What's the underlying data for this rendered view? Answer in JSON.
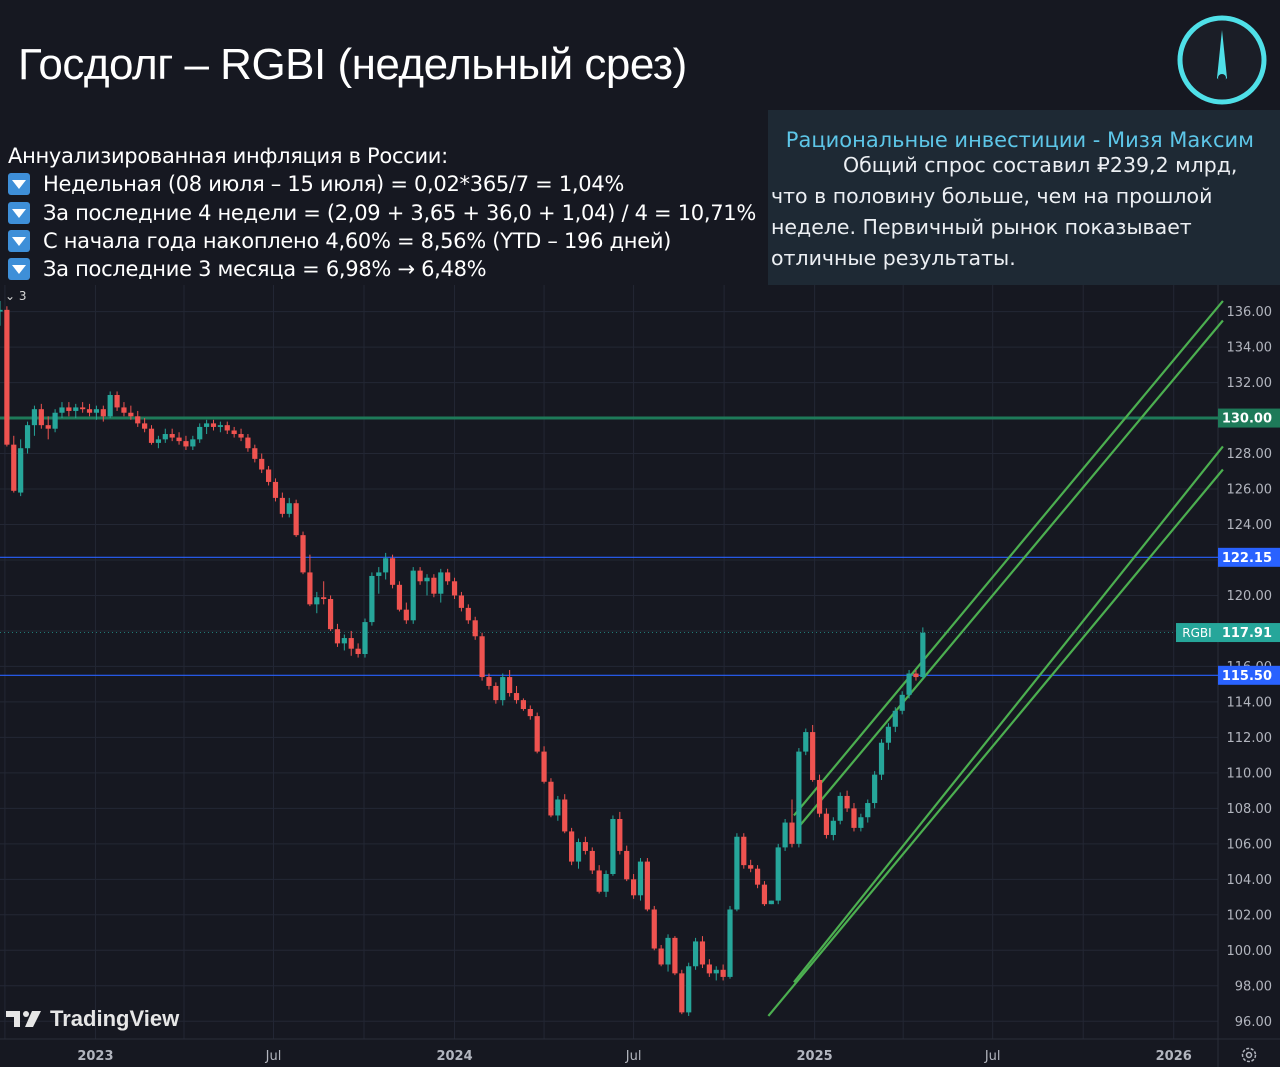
{
  "title": "Госдолг – RGBI (недельный срез)",
  "inflation": {
    "header": "Аннуализированная инфляция в России:",
    "lines": [
      "Недельная (08 июля – 15 июля) = 0,02*365/7 = 1,04%",
      "За последние 4 недели = (2,09 + 3,65 + 36,0 + 1,04) / 4 = 10,71%",
      "С начала года накоплено 4,60% = 8,56% (YTD – 196 дней)",
      "За последние 3 месяца = 6,98% → 6,48%"
    ]
  },
  "note": {
    "author": "Рациональные инвестиции - Мизя Максим",
    "text": "Общий спрос составил ₽239,2 млрд, что в половину больше, чем на прошлой неделе. Первичный рынок показывает отличные результаты."
  },
  "legend_marker": "⌄ 3",
  "watermark": "TradingView",
  "colors": {
    "up": "#26a69a",
    "down": "#ef5350",
    "level_green": "#1e7a59",
    "level_blue": "#2962ff",
    "channel": "#4caf50",
    "accent": "#5dc6e8"
  },
  "icons": {
    "logo": "compass-needle-icon",
    "settings": "gear-icon",
    "watermark": "tradingview-logo-icon"
  },
  "chart_data": {
    "type": "candlestick",
    "symbol": "RGBI",
    "last_price": 117.91,
    "y_range": [
      95.0,
      137.5
    ],
    "x_range": [
      "2022-09-26",
      "2026-02-15"
    ],
    "y_ticks": [
      "136.00",
      "134.00",
      "132.00",
      "130.00",
      "128.00",
      "126.00",
      "124.00",
      "122.00",
      "120.00",
      "118.00",
      "116.00",
      "114.00",
      "112.00",
      "110.00",
      "108.00",
      "106.00",
      "104.00",
      "102.00",
      "100.00",
      "98.00",
      "96.00"
    ],
    "x_ticks": [
      {
        "label": "2023",
        "date": "2023-01-01",
        "bold": true
      },
      {
        "label": "Jul",
        "date": "2023-07-01",
        "bold": false
      },
      {
        "label": "2024",
        "date": "2024-01-01",
        "bold": true
      },
      {
        "label": "Jul",
        "date": "2024-07-01",
        "bold": false
      },
      {
        "label": "2025",
        "date": "2025-01-01",
        "bold": true
      },
      {
        "label": "Jul",
        "date": "2025-07-01",
        "bold": false
      },
      {
        "label": "2026",
        "date": "2026-01-01",
        "bold": true
      }
    ],
    "horizontal_levels": [
      {
        "value": 130.0,
        "label": "130.00",
        "color": "#1e7a59"
      },
      {
        "value": 122.15,
        "label": "122.15",
        "color": "#2962ff"
      },
      {
        "value": 115.5,
        "label": "115.50",
        "color": "#2962ff"
      }
    ],
    "price_label": {
      "name": "RGBI",
      "value": "117.91"
    },
    "channel_lines": [
      {
        "from": [
          "2024-12-11",
          107.6
        ],
        "to": [
          "2026-02-20",
          136.6
        ]
      },
      {
        "from": [
          "2024-12-15",
          106.9
        ],
        "to": [
          "2026-02-20",
          135.5
        ]
      },
      {
        "from": [
          "2024-12-11",
          98.2
        ],
        "to": [
          "2026-02-20",
          128.4
        ]
      },
      {
        "from": [
          "2024-11-15",
          96.3
        ],
        "to": [
          "2026-02-20",
          127.1
        ]
      }
    ],
    "candles_weekly_from": "2022-09-26",
    "candles": [
      [
        136.0,
        136.6,
        135.2,
        136.1
      ],
      [
        136.1,
        136.3,
        128.4,
        128.5
      ],
      [
        128.5,
        129.0,
        125.8,
        125.9
      ],
      [
        125.8,
        128.8,
        125.6,
        128.3
      ],
      [
        128.3,
        129.8,
        128.0,
        129.6
      ],
      [
        129.6,
        130.7,
        129.0,
        130.5
      ],
      [
        130.5,
        130.8,
        129.4,
        129.6
      ],
      [
        129.6,
        130.1,
        128.8,
        129.4
      ],
      [
        129.4,
        130.5,
        129.2,
        130.3
      ],
      [
        130.3,
        130.9,
        130.0,
        130.6
      ],
      [
        130.6,
        130.9,
        130.1,
        130.4
      ],
      [
        130.4,
        130.8,
        130.0,
        130.6
      ],
      [
        130.6,
        130.9,
        130.3,
        130.5
      ],
      [
        130.5,
        130.8,
        130.1,
        130.3
      ],
      [
        130.3,
        130.7,
        129.9,
        130.5
      ],
      [
        130.5,
        130.7,
        129.8,
        130.1
      ],
      [
        130.1,
        131.5,
        130.0,
        131.3
      ],
      [
        131.3,
        131.5,
        130.4,
        130.6
      ],
      [
        130.6,
        130.9,
        130.1,
        130.3
      ],
      [
        130.3,
        130.7,
        129.9,
        130.1
      ],
      [
        130.1,
        130.4,
        129.5,
        129.7
      ],
      [
        129.7,
        130.0,
        129.2,
        129.4
      ],
      [
        129.4,
        129.6,
        128.5,
        128.6
      ],
      [
        128.6,
        129.0,
        128.3,
        128.8
      ],
      [
        128.8,
        129.4,
        128.6,
        129.1
      ],
      [
        129.1,
        129.4,
        128.7,
        128.9
      ],
      [
        128.9,
        129.2,
        128.5,
        128.7
      ],
      [
        128.7,
        129.0,
        128.2,
        128.4
      ],
      [
        128.4,
        129.0,
        128.2,
        128.8
      ],
      [
        128.8,
        129.7,
        128.6,
        129.5
      ],
      [
        129.5,
        129.9,
        129.1,
        129.7
      ],
      [
        129.7,
        129.9,
        129.3,
        129.5
      ],
      [
        129.5,
        129.8,
        129.2,
        129.6
      ],
      [
        129.6,
        129.8,
        129.1,
        129.3
      ],
      [
        129.3,
        129.5,
        128.9,
        129.1
      ],
      [
        129.1,
        129.4,
        128.7,
        128.9
      ],
      [
        128.9,
        129.1,
        128.1,
        128.3
      ],
      [
        128.3,
        128.5,
        127.5,
        127.7
      ],
      [
        127.7,
        128.0,
        126.9,
        127.1
      ],
      [
        127.1,
        127.3,
        126.2,
        126.4
      ],
      [
        126.4,
        126.6,
        125.3,
        125.5
      ],
      [
        125.5,
        125.8,
        124.4,
        124.6
      ],
      [
        124.6,
        125.5,
        124.4,
        125.2
      ],
      [
        125.2,
        125.4,
        123.3,
        123.4
      ],
      [
        123.4,
        123.6,
        121.2,
        121.3
      ],
      [
        121.3,
        122.3,
        119.4,
        119.5
      ],
      [
        119.5,
        120.2,
        119.0,
        119.9
      ],
      [
        119.9,
        120.8,
        119.5,
        119.8
      ],
      [
        119.8,
        120.0,
        118.0,
        118.1
      ],
      [
        118.1,
        118.4,
        117.1,
        117.3
      ],
      [
        117.3,
        117.8,
        116.9,
        117.6
      ],
      [
        117.6,
        118.0,
        116.6,
        117.0
      ],
      [
        117.0,
        117.3,
        116.5,
        116.7
      ],
      [
        116.7,
        118.7,
        116.5,
        118.5
      ],
      [
        118.5,
        121.3,
        118.3,
        121.1
      ],
      [
        121.1,
        121.6,
        120.1,
        121.3
      ],
      [
        121.3,
        122.4,
        120.9,
        122.1
      ],
      [
        122.1,
        122.3,
        120.4,
        120.6
      ],
      [
        120.6,
        120.8,
        119.1,
        119.2
      ],
      [
        119.2,
        119.6,
        118.4,
        118.6
      ],
      [
        118.6,
        121.6,
        118.4,
        121.4
      ],
      [
        121.4,
        121.6,
        120.6,
        120.8
      ],
      [
        120.8,
        121.2,
        120.0,
        121.0
      ],
      [
        121.0,
        121.2,
        119.9,
        120.1
      ],
      [
        120.1,
        121.5,
        119.6,
        121.3
      ],
      [
        121.3,
        121.5,
        120.6,
        120.8
      ],
      [
        120.8,
        121.0,
        119.8,
        120.0
      ],
      [
        120.0,
        120.2,
        119.1,
        119.3
      ],
      [
        119.3,
        119.5,
        118.4,
        118.6
      ],
      [
        118.6,
        118.8,
        117.5,
        117.7
      ],
      [
        117.7,
        117.9,
        115.2,
        115.4
      ],
      [
        115.4,
        115.6,
        114.7,
        114.9
      ],
      [
        114.9,
        115.1,
        113.9,
        114.1
      ],
      [
        114.1,
        115.6,
        113.8,
        115.4
      ],
      [
        115.4,
        115.8,
        114.3,
        114.5
      ],
      [
        114.5,
        114.9,
        113.9,
        114.1
      ],
      [
        114.1,
        114.2,
        113.5,
        113.6
      ],
      [
        113.6,
        113.8,
        113.0,
        113.2
      ],
      [
        113.2,
        113.4,
        111.1,
        111.2
      ],
      [
        111.2,
        111.5,
        109.4,
        109.5
      ],
      [
        109.5,
        109.7,
        107.5,
        107.6
      ],
      [
        107.6,
        108.7,
        107.3,
        108.5
      ],
      [
        108.5,
        108.8,
        106.6,
        106.7
      ],
      [
        106.7,
        106.9,
        104.8,
        105.0
      ],
      [
        105.0,
        106.3,
        104.6,
        106.1
      ],
      [
        106.1,
        106.4,
        105.4,
        105.6
      ],
      [
        105.6,
        105.8,
        104.3,
        104.5
      ],
      [
        104.5,
        104.8,
        103.2,
        103.3
      ],
      [
        103.3,
        104.5,
        103.0,
        104.3
      ],
      [
        104.3,
        107.6,
        104.2,
        107.4
      ],
      [
        107.4,
        107.8,
        105.4,
        105.6
      ],
      [
        105.6,
        105.9,
        103.9,
        104.0
      ],
      [
        104.0,
        104.3,
        102.9,
        103.1
      ],
      [
        103.1,
        105.2,
        102.8,
        105.0
      ],
      [
        105.0,
        105.2,
        102.2,
        102.3
      ],
      [
        102.3,
        102.5,
        100.0,
        100.1
      ],
      [
        100.1,
        100.3,
        99.1,
        99.2
      ],
      [
        99.2,
        100.9,
        98.8,
        100.7
      ],
      [
        100.7,
        100.8,
        98.6,
        98.7
      ],
      [
        98.7,
        98.9,
        96.4,
        96.5
      ],
      [
        96.5,
        99.3,
        96.3,
        99.1
      ],
      [
        99.1,
        100.7,
        98.9,
        100.5
      ],
      [
        100.5,
        100.8,
        99.0,
        99.2
      ],
      [
        99.2,
        99.5,
        98.5,
        98.7
      ],
      [
        98.7,
        99.1,
        98.3,
        98.9
      ],
      [
        98.9,
        99.2,
        98.3,
        98.5
      ],
      [
        98.5,
        102.5,
        98.4,
        102.3
      ],
      [
        102.3,
        106.6,
        102.2,
        106.4
      ],
      [
        106.4,
        106.6,
        104.6,
        104.8
      ],
      [
        104.8,
        105.1,
        104.4,
        104.6
      ],
      [
        104.6,
        104.8,
        103.5,
        103.7
      ],
      [
        103.7,
        103.9,
        102.5,
        102.6
      ],
      [
        102.6,
        102.8,
        102.6,
        102.8
      ],
      [
        102.8,
        106.0,
        102.6,
        105.8
      ],
      [
        105.8,
        107.4,
        105.6,
        107.2
      ],
      [
        107.2,
        108.5,
        105.8,
        106.0
      ],
      [
        106.0,
        111.4,
        105.8,
        111.2
      ],
      [
        111.2,
        112.5,
        111.0,
        112.3
      ],
      [
        112.3,
        112.7,
        109.5,
        109.6
      ],
      [
        109.6,
        109.9,
        107.5,
        107.7
      ],
      [
        107.7,
        108.0,
        106.3,
        106.5
      ],
      [
        106.5,
        107.5,
        106.2,
        107.3
      ],
      [
        107.3,
        108.9,
        107.1,
        108.7
      ],
      [
        108.7,
        109.0,
        107.8,
        108.0
      ],
      [
        108.0,
        108.3,
        106.7,
        106.9
      ],
      [
        106.9,
        107.7,
        106.7,
        107.5
      ],
      [
        107.5,
        108.5,
        107.2,
        108.3
      ],
      [
        108.3,
        110.1,
        108.0,
        109.9
      ],
      [
        109.9,
        111.9,
        109.6,
        111.7
      ],
      [
        111.7,
        112.8,
        111.3,
        112.6
      ],
      [
        112.6,
        113.7,
        112.3,
        113.5
      ],
      [
        113.5,
        114.6,
        113.3,
        114.4
      ],
      [
        114.4,
        115.8,
        114.2,
        115.6
      ],
      [
        115.6,
        115.8,
        115.2,
        115.4
      ],
      [
        115.4,
        118.2,
        115.3,
        117.9
      ]
    ]
  }
}
